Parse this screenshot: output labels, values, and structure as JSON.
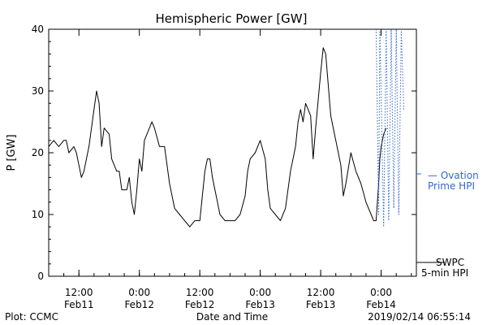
{
  "chart_data": {
    "type": "line",
    "title": "Hemispheric Power [GW]",
    "xlabel": "Date and Time",
    "ylabel": "P [GW]",
    "xlim": [
      "2019-02-11T06:00",
      "2019-02-14T07:00"
    ],
    "ylim": [
      0,
      40
    ],
    "yticks": [
      0,
      10,
      20,
      30,
      40
    ],
    "xticks": [
      {
        "t": "2019-02-11T12:00",
        "time": "12:00",
        "date": "Feb11"
      },
      {
        "t": "2019-02-12T00:00",
        "time": "0:00",
        "date": "Feb12"
      },
      {
        "t": "2019-02-12T12:00",
        "time": "12:00",
        "date": "Feb12"
      },
      {
        "t": "2019-02-13T00:00",
        "time": "0:00",
        "date": "Feb13"
      },
      {
        "t": "2019-02-13T12:00",
        "time": "12:00",
        "date": "Feb13"
      },
      {
        "t": "2019-02-14T00:00",
        "time": "0:00",
        "date": "Feb14"
      }
    ],
    "grid": false,
    "series": [
      {
        "name": "SWPC 5-min HPI",
        "color": "#000000",
        "style": "solid",
        "points": [
          [
            "2019-02-11T06:00",
            21
          ],
          [
            "2019-02-11T07:00",
            22
          ],
          [
            "2019-02-11T08:00",
            21
          ],
          [
            "2019-02-11T09:00",
            22
          ],
          [
            "2019-02-11T09:30",
            22
          ],
          [
            "2019-02-11T10:00",
            20
          ],
          [
            "2019-02-11T11:00",
            21
          ],
          [
            "2019-02-11T11:30",
            20
          ],
          [
            "2019-02-11T12:00",
            18
          ],
          [
            "2019-02-11T12:30",
            16
          ],
          [
            "2019-02-11T13:00",
            17
          ],
          [
            "2019-02-11T14:00",
            21
          ],
          [
            "2019-02-11T15:00",
            27
          ],
          [
            "2019-02-11T15:30",
            30
          ],
          [
            "2019-02-11T16:00",
            28
          ],
          [
            "2019-02-11T16:30",
            21
          ],
          [
            "2019-02-11T17:00",
            24
          ],
          [
            "2019-02-11T18:00",
            23
          ],
          [
            "2019-02-11T18:30",
            19
          ],
          [
            "2019-02-11T19:30",
            17
          ],
          [
            "2019-02-11T20:00",
            17
          ],
          [
            "2019-02-11T20:30",
            14
          ],
          [
            "2019-02-11T21:30",
            14
          ],
          [
            "2019-02-11T22:00",
            16
          ],
          [
            "2019-02-11T22:30",
            12
          ],
          [
            "2019-02-11T23:00",
            10
          ],
          [
            "2019-02-11T23:30",
            14
          ],
          [
            "2019-02-12T00:00",
            19
          ],
          [
            "2019-02-12T00:30",
            17
          ],
          [
            "2019-02-12T01:00",
            22
          ],
          [
            "2019-02-12T02:00",
            24
          ],
          [
            "2019-02-12T02:30",
            25
          ],
          [
            "2019-02-12T03:00",
            24
          ],
          [
            "2019-02-12T04:00",
            21
          ],
          [
            "2019-02-12T05:00",
            21
          ],
          [
            "2019-02-12T06:00",
            15
          ],
          [
            "2019-02-12T07:00",
            11
          ],
          [
            "2019-02-12T08:00",
            10
          ],
          [
            "2019-02-12T09:00",
            9
          ],
          [
            "2019-02-12T10:00",
            8
          ],
          [
            "2019-02-12T11:00",
            9
          ],
          [
            "2019-02-12T12:00",
            9
          ],
          [
            "2019-02-12T12:30",
            13
          ],
          [
            "2019-02-12T13:00",
            17
          ],
          [
            "2019-02-12T13:30",
            19
          ],
          [
            "2019-02-12T14:00",
            19
          ],
          [
            "2019-02-12T14:30",
            16
          ],
          [
            "2019-02-12T15:00",
            14
          ],
          [
            "2019-02-12T15:30",
            12
          ],
          [
            "2019-02-12T16:00",
            10
          ],
          [
            "2019-02-12T17:00",
            9
          ],
          [
            "2019-02-12T19:00",
            9
          ],
          [
            "2019-02-12T20:00",
            10
          ],
          [
            "2019-02-12T21:00",
            13
          ],
          [
            "2019-02-12T21:30",
            17
          ],
          [
            "2019-02-12T22:00",
            19
          ],
          [
            "2019-02-12T23:00",
            20
          ],
          [
            "2019-02-13T00:00",
            22
          ],
          [
            "2019-02-13T01:00",
            19
          ],
          [
            "2019-02-13T01:30",
            14
          ],
          [
            "2019-02-13T02:00",
            11
          ],
          [
            "2019-02-13T03:00",
            10
          ],
          [
            "2019-02-13T04:00",
            9
          ],
          [
            "2019-02-13T05:00",
            11
          ],
          [
            "2019-02-13T05:30",
            14
          ],
          [
            "2019-02-13T06:00",
            17
          ],
          [
            "2019-02-13T07:00",
            21
          ],
          [
            "2019-02-13T07:30",
            25
          ],
          [
            "2019-02-13T08:00",
            27
          ],
          [
            "2019-02-13T08:30",
            25
          ],
          [
            "2019-02-13T09:00",
            28
          ],
          [
            "2019-02-13T10:00",
            26
          ],
          [
            "2019-02-13T10:30",
            19
          ],
          [
            "2019-02-13T11:00",
            24
          ],
          [
            "2019-02-13T12:00",
            33
          ],
          [
            "2019-02-13T12:30",
            37
          ],
          [
            "2019-02-13T13:00",
            36
          ],
          [
            "2019-02-13T14:00",
            26
          ],
          [
            "2019-02-13T14:30",
            24
          ],
          [
            "2019-02-13T15:00",
            22
          ],
          [
            "2019-02-13T16:00",
            18
          ],
          [
            "2019-02-13T16:30",
            13
          ],
          [
            "2019-02-13T17:00",
            15
          ],
          [
            "2019-02-13T18:00",
            20
          ],
          [
            "2019-02-13T19:00",
            17
          ],
          [
            "2019-02-13T20:00",
            15
          ],
          [
            "2019-02-13T21:00",
            12
          ],
          [
            "2019-02-13T22:00",
            10
          ],
          [
            "2019-02-13T22:30",
            9
          ],
          [
            "2019-02-13T23:00",
            9
          ],
          [
            "2019-02-13T23:30",
            15
          ],
          [
            "2019-02-13T23:45",
            19
          ],
          [
            "2019-02-14T00:00",
            21
          ],
          [
            "2019-02-14T00:30",
            23
          ],
          [
            "2019-02-14T01:00",
            24
          ]
        ]
      },
      {
        "name": "Ovation Prime HPI",
        "color": "#3366cc",
        "style": "dotted",
        "points": [
          [
            "2019-02-13T23:00",
            40
          ],
          [
            "2019-02-13T23:30",
            10
          ],
          [
            "2019-02-13T23:45",
            40
          ],
          [
            "2019-02-14T00:30",
            8
          ],
          [
            "2019-02-14T01:00",
            40
          ],
          [
            "2019-02-14T01:30",
            9
          ],
          [
            "2019-02-14T02:00",
            40
          ],
          [
            "2019-02-14T02:30",
            11
          ],
          [
            "2019-02-14T03:00",
            40
          ],
          [
            "2019-02-14T03:30",
            10
          ],
          [
            "2019-02-14T04:00",
            40
          ],
          [
            "2019-02-14T04:30",
            27
          ]
        ]
      }
    ],
    "legend": [
      {
        "lines": [
          "— Ovation",
          "Prime HPI"
        ],
        "color": "#3366cc",
        "placement": "right-middle"
      },
      {
        "lines": [
          "SWPC",
          "5-min HPI"
        ],
        "color": "#000000",
        "placement": "right-bottom"
      }
    ],
    "footer": {
      "left": "Plot: CCMC",
      "right": "2019/02/14 06:55:14"
    }
  }
}
